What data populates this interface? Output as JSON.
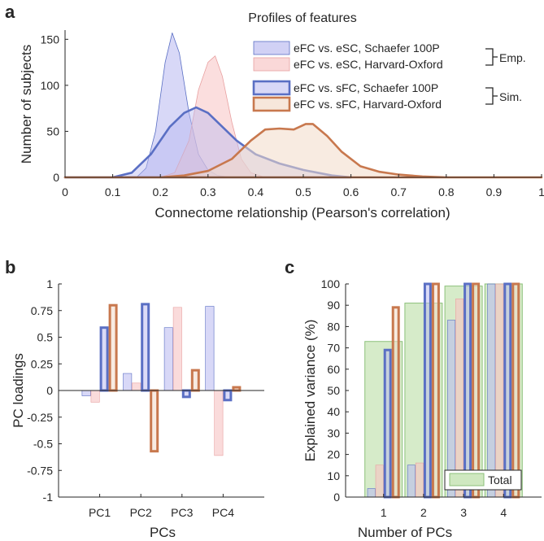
{
  "panels": {
    "a": "a",
    "b": "b",
    "c": "c"
  },
  "colors": {
    "blue_fill": "#b8b8f0",
    "blue_line": "#5a6fc4",
    "pink_fill": "#f7c3c3",
    "pink_line": "#e8a0a0",
    "orange_fill": "#f3dac8",
    "orange_line": "#c8784e",
    "total_fill": "#cfe8c0",
    "total_line": "#8cc07a",
    "axis": "#262626"
  },
  "chart_data": [
    {
      "id": "a",
      "type": "area",
      "title": "Profiles of features",
      "xlabel": "Connectome relationship (Pearson's correlation)",
      "ylabel": "Number of subjects",
      "xlim": [
        0,
        1
      ],
      "ylim": [
        0,
        160
      ],
      "xticks": [
        "0",
        "0.1",
        "0.2",
        "0.3",
        "0.4",
        "0.5",
        "0.6",
        "0.7",
        "0.8",
        "0.9",
        "1"
      ],
      "yticks": [
        "0",
        "50",
        "100",
        "150"
      ],
      "series": [
        {
          "name": "eFC vs. eSC, Schaefer 100P",
          "style": "emp-blue",
          "x": [
            0,
            0.15,
            0.17,
            0.19,
            0.21,
            0.225,
            0.24,
            0.26,
            0.28,
            0.3,
            0.32,
            0.35,
            0.4
          ],
          "y": [
            0,
            0,
            10,
            50,
            125,
            157,
            135,
            70,
            25,
            8,
            2,
            0,
            0
          ]
        },
        {
          "name": "eFC vs. eSC, Harvard-Oxford",
          "style": "emp-pink",
          "x": [
            0,
            0.2,
            0.23,
            0.26,
            0.28,
            0.3,
            0.315,
            0.33,
            0.35,
            0.37,
            0.39,
            0.42,
            0.45
          ],
          "y": [
            0,
            0,
            5,
            40,
            95,
            125,
            132,
            110,
            60,
            20,
            5,
            0,
            0
          ]
        },
        {
          "name": "eFC vs. sFC, Schaefer 100P",
          "style": "sim-blue",
          "x": [
            0,
            0.1,
            0.14,
            0.18,
            0.22,
            0.25,
            0.275,
            0.3,
            0.33,
            0.36,
            0.4,
            0.45,
            0.5,
            0.53,
            0.56,
            0.6
          ],
          "y": [
            0,
            0,
            5,
            25,
            55,
            70,
            76,
            70,
            55,
            40,
            25,
            15,
            8,
            5,
            2,
            0
          ]
        },
        {
          "name": "eFC vs. sFC, Harvard-Oxford",
          "style": "sim-orange",
          "x": [
            0,
            0.2,
            0.25,
            0.3,
            0.35,
            0.39,
            0.42,
            0.45,
            0.48,
            0.505,
            0.52,
            0.55,
            0.58,
            0.62,
            0.66,
            0.7,
            0.75,
            0.8,
            1
          ],
          "y": [
            0,
            0,
            2,
            7,
            20,
            40,
            52,
            53,
            52,
            58,
            58,
            45,
            28,
            12,
            6,
            3,
            1,
            0,
            0
          ]
        }
      ],
      "legend": {
        "position": "top-right",
        "group_emp": "Emp.",
        "group_sim": "Sim."
      }
    },
    {
      "id": "b",
      "type": "bar",
      "xlabel": "PCs",
      "ylabel": "PC loadings",
      "ylim": [
        -1,
        1
      ],
      "categories": [
        "PC1",
        "PC2",
        "PC3",
        "PC4"
      ],
      "yticks": [
        "1",
        "0.75",
        "0.5",
        "0.25",
        "0",
        "-0.25",
        "-0.5",
        "-0.75",
        "-1"
      ],
      "series": [
        {
          "name": "eFC vs. eSC, Schaefer 100P",
          "style": "emp-blue",
          "values": [
            -0.05,
            0.16,
            0.59,
            0.79
          ]
        },
        {
          "name": "eFC vs. eSC, Harvard-Oxford",
          "style": "emp-pink",
          "values": [
            -0.11,
            0.07,
            0.78,
            -0.61
          ]
        },
        {
          "name": "eFC vs. sFC, Schaefer 100P",
          "style": "sim-blue",
          "values": [
            0.59,
            0.81,
            -0.06,
            -0.09
          ]
        },
        {
          "name": "eFC vs. sFC, Harvard-Oxford",
          "style": "sim-orange",
          "values": [
            0.8,
            -0.57,
            0.19,
            0.03
          ]
        }
      ]
    },
    {
      "id": "c",
      "type": "bar",
      "xlabel": "Number of PCs",
      "ylabel": "Explained variance (%)",
      "ylim": [
        0,
        100
      ],
      "categories": [
        "1",
        "2",
        "3",
        "4"
      ],
      "yticks": [
        "0",
        "10",
        "20",
        "30",
        "40",
        "50",
        "60",
        "70",
        "80",
        "90",
        "100"
      ],
      "total": {
        "name": "Total",
        "values": [
          73,
          91,
          99,
          100
        ]
      },
      "series": [
        {
          "name": "eFC vs. eSC, Schaefer 100P",
          "style": "emp-blue",
          "values": [
            4,
            15,
            83,
            100
          ]
        },
        {
          "name": "eFC vs. eSC, Harvard-Oxford",
          "style": "emp-pink",
          "values": [
            15,
            16,
            93,
            100
          ]
        },
        {
          "name": "eFC vs. sFC, Schaefer 100P",
          "style": "sim-blue",
          "values": [
            69,
            100,
            100,
            100
          ]
        },
        {
          "name": "eFC vs. sFC, Harvard-Oxford",
          "style": "sim-orange",
          "values": [
            89,
            100,
            100,
            100
          ]
        }
      ],
      "legend": {
        "position": "bottom-right"
      }
    }
  ]
}
